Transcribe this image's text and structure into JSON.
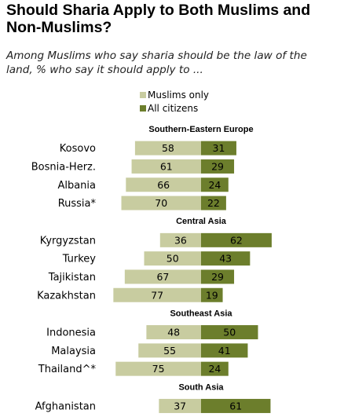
{
  "title": "Should Sharia Apply to Both Muslims and Non-Muslims?",
  "subtitle": "Among Muslims who say sharia should be the law of the land, % who say it should apply to ...",
  "colors": {
    "muslims_only": "#c8cca0",
    "all_citizens": "#6c7e2c"
  },
  "chart_data": {
    "type": "bar",
    "orientation": "horizontal-diverging",
    "title": "Should Sharia Apply to Both Muslims and Non-Muslims?",
    "subtitle": "Among Muslims who say sharia should be the law of the land, % who say it should apply to ...",
    "legend": [
      "Muslims only",
      "All citizens"
    ],
    "legend_position": "top",
    "grid": false,
    "series": [
      {
        "name": "Muslims only",
        "color": "#c8cca0"
      },
      {
        "name": "All citizens",
        "color": "#6c7e2c"
      }
    ],
    "groups": [
      {
        "name": "Southern-Eastern  Europe",
        "rows": [
          {
            "category": "Kosovo",
            "muslims_only": 58,
            "all_citizens": 31
          },
          {
            "category": "Bosnia-Herz.",
            "muslims_only": 61,
            "all_citizens": 29
          },
          {
            "category": "Albania",
            "muslims_only": 66,
            "all_citizens": 24
          },
          {
            "category": "Russia*",
            "muslims_only": 70,
            "all_citizens": 22
          }
        ]
      },
      {
        "name": "Central Asia",
        "rows": [
          {
            "category": "Kyrgyzstan",
            "muslims_only": 36,
            "all_citizens": 62
          },
          {
            "category": "Turkey",
            "muslims_only": 50,
            "all_citizens": 43
          },
          {
            "category": "Tajikistan",
            "muslims_only": 67,
            "all_citizens": 29
          },
          {
            "category": "Kazakhstan",
            "muslims_only": 77,
            "all_citizens": 19
          }
        ]
      },
      {
        "name": "Southeast  Asia",
        "rows": [
          {
            "category": "Indonesia",
            "muslims_only": 48,
            "all_citizens": 50
          },
          {
            "category": "Malaysia",
            "muslims_only": 55,
            "all_citizens": 41
          },
          {
            "category": "Thailand^*",
            "muslims_only": 75,
            "all_citizens": 24
          }
        ]
      },
      {
        "name": "South Asia",
        "rows": [
          {
            "category": "Afghanistan",
            "muslims_only": 37,
            "all_citizens": 61
          }
        ]
      }
    ]
  }
}
